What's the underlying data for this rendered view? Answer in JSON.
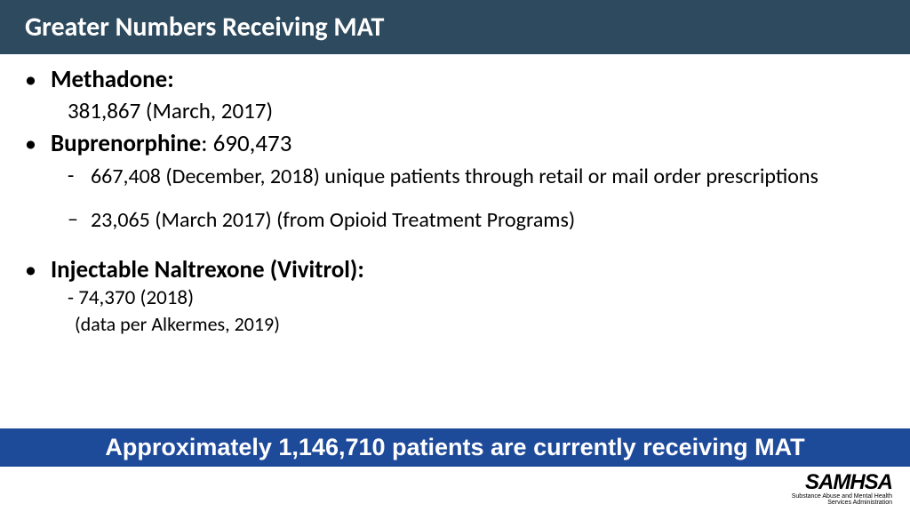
{
  "header": {
    "title": "Greater Numbers Receiving MAT",
    "bg_color": "#2e4a5e",
    "text_color": "#ffffff"
  },
  "bullets": {
    "methadone": {
      "label": "Methadone:",
      "value": "381,867 (March, 2017)"
    },
    "buprenorphine": {
      "label_bold": "Buprenorphine",
      "label_rest": ": 690,473",
      "sub1": "667,408 (December, 2018) unique patients through retail or mail order prescriptions",
      "sub2": "23,065 (March 2017) (from Opioid Treatment Programs)"
    },
    "naltrexone": {
      "label": "Injectable Naltrexone (Vivitrol):",
      "value": "- 74,370 (2018)",
      "source": "(data per Alkermes, 2019)"
    }
  },
  "summary": {
    "text": "Approximately 1,146,710 patients are currently receiving MAT",
    "bg_color": "#1e4a9a",
    "text_color": "#ffffff"
  },
  "logo": {
    "main": "SAMHSA",
    "sub1": "Substance Abuse and Mental Health",
    "sub2": "Services Administration"
  }
}
